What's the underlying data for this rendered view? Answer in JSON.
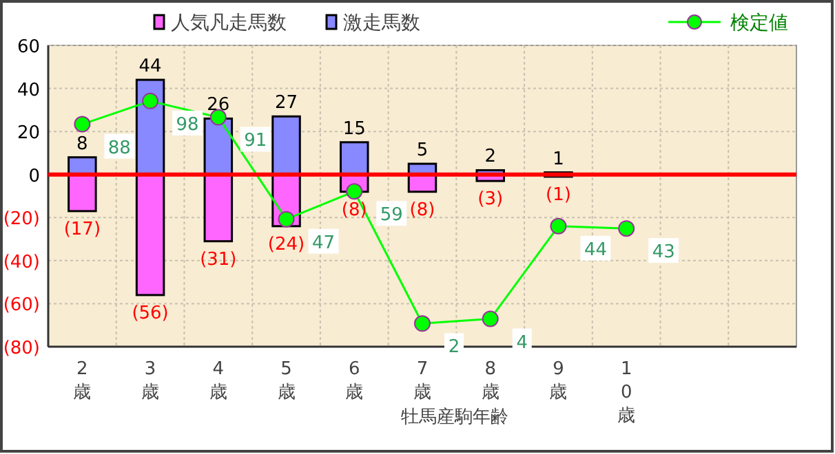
{
  "chart_data": {
    "type": "bar",
    "stacked": true,
    "xlabel": "牡馬産駒年齢",
    "categories": [
      "2歳",
      "3歳",
      "4歳",
      "5歳",
      "6歳",
      "7歳",
      "8歳",
      "9歳",
      "10歳",
      null,
      null
    ],
    "series": [
      {
        "name": "人気凡走馬数",
        "color": "#ff66ff",
        "values": [
          -17,
          -56,
          -31,
          -24,
          -8,
          -8,
          -3,
          -1,
          null,
          null,
          null
        ],
        "value_labels": [
          "(17)",
          "(56)",
          "(31)",
          "(24)",
          "(8)",
          "(8)",
          "(3)",
          "(1)",
          null,
          null,
          null
        ]
      },
      {
        "name": "激走馬数",
        "color": "#8888ff",
        "values": [
          8,
          44,
          26,
          27,
          15,
          5,
          2,
          1,
          null,
          null,
          null
        ],
        "value_labels": [
          "8",
          "44",
          "26",
          "27",
          "15",
          "5",
          "2",
          "1",
          null,
          null,
          null
        ]
      },
      {
        "name": "検定値",
        "type": "line",
        "axis": "y2",
        "color": "#00ff00",
        "marker": "circle",
        "values": [
          88,
          98,
          91,
          47,
          59,
          2,
          4,
          44,
          43,
          null,
          null
        ],
        "value_labels": [
          "88",
          "98",
          "91",
          "47",
          "59",
          "2",
          "4",
          "44",
          "43",
          null,
          null
        ]
      }
    ],
    "ylim": [
      -80,
      60
    ],
    "yticks": [
      {
        "value": -80,
        "label": "(80)"
      },
      {
        "value": -60,
        "label": "(60)"
      },
      {
        "value": -40,
        "label": "(40)"
      },
      {
        "value": -20,
        "label": "(20)"
      },
      0,
      20,
      40,
      60
    ],
    "y2lim": [
      -8,
      122
    ],
    "ref_lines": [
      {
        "axis": "y",
        "value": 0,
        "color": "#ff0000"
      }
    ],
    "grid": true,
    "legend": "top"
  }
}
